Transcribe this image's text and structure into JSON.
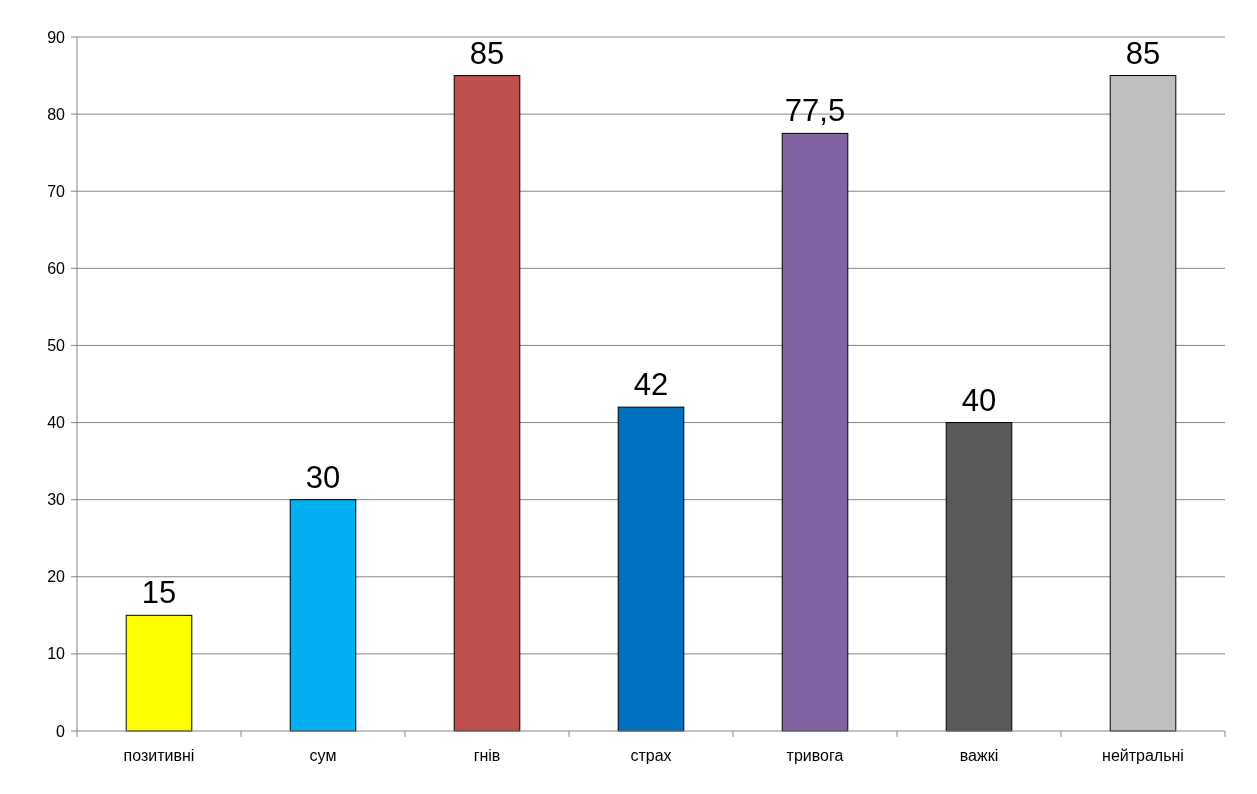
{
  "chart_data": {
    "type": "bar",
    "categories": [
      "позитивні",
      "сум",
      "гнів",
      "страх",
      "тривога",
      "важкі",
      "нейтральні"
    ],
    "values": [
      15,
      30,
      85,
      42,
      77.5,
      40,
      85
    ],
    "colors": [
      "#ffff00",
      "#00b0f0",
      "#c0504d",
      "#0070c0",
      "#8064a2",
      "#595959",
      "#bfbfbf"
    ],
    "value_labels": [
      "15",
      "30",
      "85",
      "42",
      "77,5",
      "40",
      "85"
    ],
    "ylim": [
      0,
      90
    ],
    "yticks": [
      0,
      10,
      20,
      30,
      40,
      50,
      60,
      70,
      80,
      90
    ],
    "grid": "y"
  }
}
